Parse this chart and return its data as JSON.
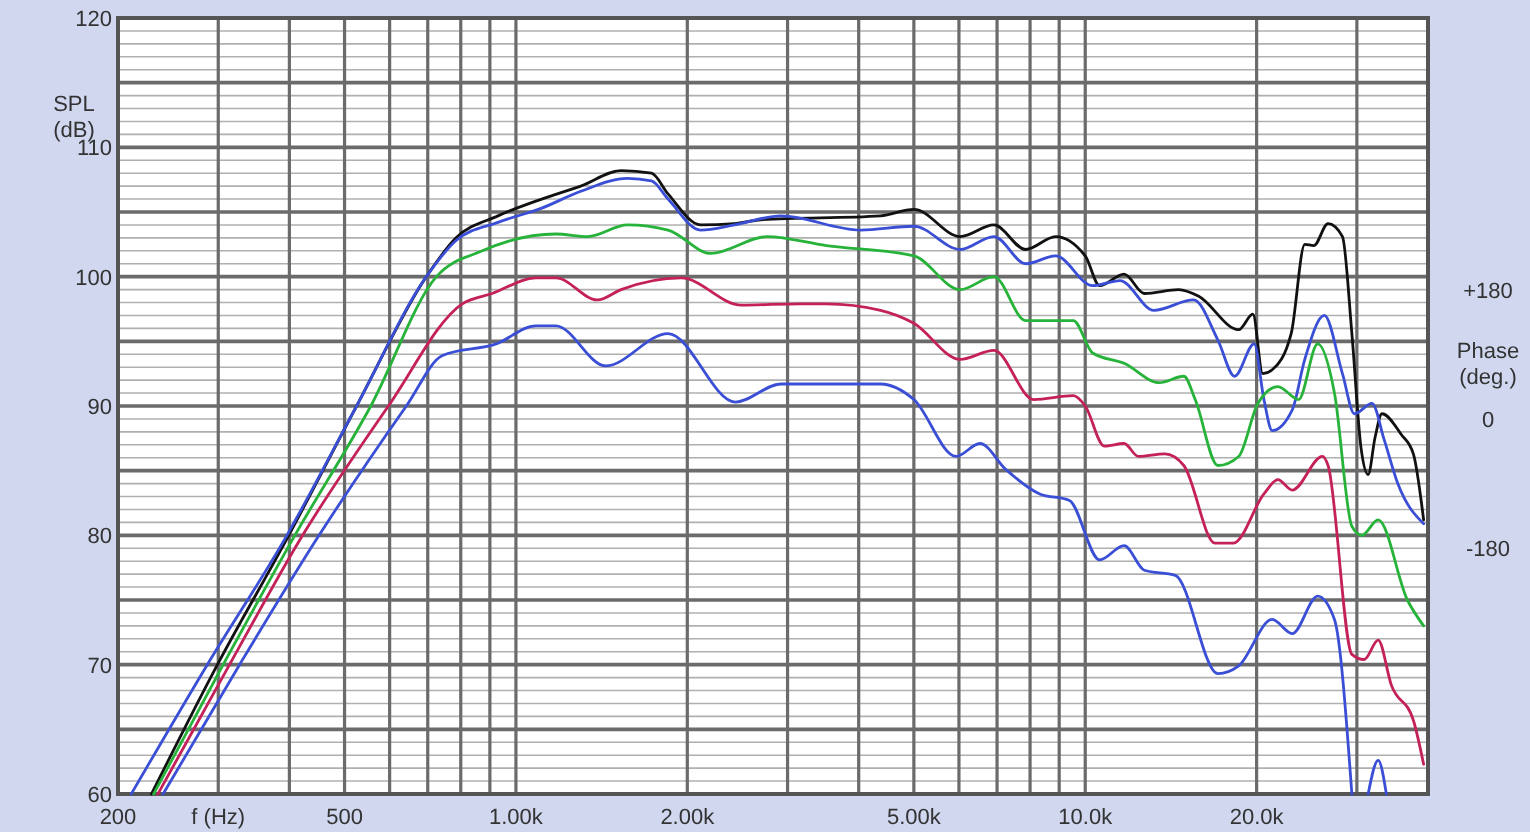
{
  "chart_data": {
    "type": "line",
    "xlabel": "f (Hz)",
    "ylabel": "SPL\n(dB)",
    "y2label": "Phase\n(deg.)",
    "log": "x",
    "grid": true,
    "line_style": "solid",
    "marker": "none",
    "xlim": [
      200,
      40000
    ],
    "ylim": [
      60,
      120
    ],
    "y2lim": [
      -522,
      558
    ],
    "xticks": [
      200,
      {
        "value": 300,
        "label": null
      },
      {
        "value": 400,
        "label": null
      },
      500,
      {
        "value": 600,
        "label": null
      },
      {
        "value": 700,
        "label": null
      },
      {
        "value": 800,
        "label": null
      },
      {
        "value": 900,
        "label": null
      },
      {
        "value": 1000,
        "label": "1.00k"
      },
      {
        "value": 2000,
        "label": "2.00k"
      },
      {
        "value": 3000,
        "label": null
      },
      {
        "value": 4000,
        "label": null
      },
      {
        "value": 5000,
        "label": "5.00k"
      },
      {
        "value": 6000,
        "label": null
      },
      {
        "value": 7000,
        "label": null
      },
      {
        "value": 8000,
        "label": null
      },
      {
        "value": 9000,
        "label": null
      },
      {
        "value": 10000,
        "label": "10.0k"
      },
      {
        "value": 20000,
        "label": "20.0k"
      },
      {
        "value": 30000,
        "label": null
      }
    ],
    "yticks": [
      60,
      {
        "value": 61,
        "label": null
      },
      {
        "value": 62,
        "label": null
      },
      {
        "value": 63,
        "label": null
      },
      {
        "value": 64,
        "label": null
      },
      {
        "value": 65,
        "label": null
      },
      {
        "value": 66,
        "label": null
      },
      {
        "value": 67,
        "label": null
      },
      {
        "value": 68,
        "label": null
      },
      {
        "value": 69,
        "label": null
      },
      70,
      {
        "value": 71,
        "label": null
      },
      {
        "value": 72,
        "label": null
      },
      {
        "value": 73,
        "label": null
      },
      {
        "value": 74,
        "label": null
      },
      {
        "value": 75,
        "label": null
      },
      {
        "value": 76,
        "label": null
      },
      {
        "value": 77,
        "label": null
      },
      {
        "value": 78,
        "label": null
      },
      {
        "value": 79,
        "label": null
      },
      80,
      {
        "value": 81,
        "label": null
      },
      {
        "value": 82,
        "label": null
      },
      {
        "value": 83,
        "label": null
      },
      {
        "value": 84,
        "label": null
      },
      {
        "value": 85,
        "label": null
      },
      {
        "value": 86,
        "label": null
      },
      {
        "value": 87,
        "label": null
      },
      {
        "value": 88,
        "label": null
      },
      {
        "value": 89,
        "label": null
      },
      90,
      {
        "value": 91,
        "label": null
      },
      {
        "value": 92,
        "label": null
      },
      {
        "value": 93,
        "label": null
      },
      {
        "value": 94,
        "label": null
      },
      {
        "value": 95,
        "label": null
      },
      {
        "value": 96,
        "label": null
      },
      {
        "value": 97,
        "label": null
      },
      {
        "value": 98,
        "label": null
      },
      {
        "value": 99,
        "label": null
      },
      100,
      {
        "value": 101,
        "label": null
      },
      {
        "value": 102,
        "label": null
      },
      {
        "value": 103,
        "label": null
      },
      {
        "value": 104,
        "label": null
      },
      {
        "value": 105,
        "label": null
      },
      {
        "value": 106,
        "label": null
      },
      {
        "value": 107,
        "label": null
      },
      {
        "value": 108,
        "label": null
      },
      {
        "value": 109,
        "label": null
      },
      110,
      {
        "value": 111,
        "label": null
      },
      {
        "value": 112,
        "label": null
      },
      {
        "value": 113,
        "label": null
      },
      {
        "value": 114,
        "label": null
      },
      {
        "value": 115,
        "label": null
      },
      {
        "value": 116,
        "label": null
      },
      {
        "value": 117,
        "label": null
      },
      {
        "value": 118,
        "label": null
      },
      {
        "value": 119,
        "label": null
      },
      120
    ],
    "y2ticks": [
      {
        "value": 180,
        "label": "+180"
      },
      0,
      -180
    ],
    "series": [
      {
        "color": "#111111",
        "x": [
          229,
          299,
          399,
          525,
          696,
          785,
          930,
          1110,
          1300,
          1530,
          1730,
          1850,
          2110,
          2420,
          2690,
          4370,
          5000,
          6030,
          6910,
          7860,
          8870,
          10000,
          10600,
          11700,
          12700,
          14600,
          15800,
          18600,
          19700,
          20500,
          21300,
          23000,
          24300,
          25200,
          26700,
          28300,
          29400,
          30500,
          31400,
          32300,
          33200,
          35900,
          37700,
          39300
        ],
        "values": [
          60,
          70,
          80,
          90,
          100,
          103,
          104.7,
          106,
          107,
          108.2,
          108,
          106.4,
          104,
          104.1,
          104.4,
          104.7,
          105.2,
          103.1,
          104,
          102.1,
          103.1,
          101.6,
          99.3,
          100.2,
          98.7,
          99,
          98.5,
          95.9,
          97.1,
          92.5,
          92.8,
          95.6,
          102.5,
          102.4,
          104.1,
          103.1,
          95.6,
          86.8,
          84.7,
          87.6,
          89.4,
          87.8,
          86.3,
          81.2
        ]
      },
      {
        "color": "#3a4fd6",
        "x": [
          211,
          287,
          396,
          525,
          696,
          785,
          930,
          1110,
          1300,
          1570,
          1730,
          1850,
          2110,
          2420,
          2920,
          4030,
          5000,
          6030,
          6910,
          7860,
          8870,
          10300,
          11500,
          13200,
          15500,
          17100,
          18300,
          19800,
          20600,
          21300,
          23100,
          24300,
          26300,
          28300,
          29700,
          31900,
          33500,
          35400,
          39300
        ],
        "values": [
          60,
          70,
          80,
          90,
          100,
          102.8,
          104.2,
          105.3,
          106.6,
          107.6,
          107.4,
          106,
          103.6,
          104,
          104.7,
          103.6,
          103.9,
          102.1,
          103.1,
          101,
          101.6,
          99.3,
          99.7,
          97.4,
          98.2,
          95.1,
          92.3,
          94.8,
          90.5,
          88.1,
          89.7,
          93.6,
          97,
          92.5,
          89.4,
          90.2,
          87.4,
          84,
          80.9
        ]
      },
      {
        "color": "#27b33a",
        "x": [
          231,
          306,
          409,
          556,
          725,
          873,
          1175,
          1336,
          1570,
          1850,
          2200,
          2760,
          3510,
          5000,
          6030,
          6910,
          7860,
          9530,
          10300,
          11700,
          13500,
          14900,
          15600,
          17100,
          18600,
          20100,
          21800,
          23700,
          25600,
          27400,
          29400,
          30600,
          32700,
          36800,
          39300
        ],
        "values": [
          60,
          70,
          80,
          90,
          100,
          102,
          103.3,
          103.1,
          104,
          103.6,
          101.8,
          103.1,
          102.4,
          101.6,
          99,
          100,
          96.6,
          96.6,
          94.1,
          93.3,
          91.8,
          92.3,
          90.5,
          85.4,
          86.1,
          90.2,
          91.5,
          90.5,
          94.8,
          91,
          80.7,
          80,
          81.2,
          75,
          73
        ]
      },
      {
        "color": "#c4205a",
        "x": [
          235,
          314,
          422,
          597,
          805,
          908,
          1084,
          1175,
          1390,
          1530,
          1950,
          2490,
          3160,
          3510,
          4370,
          5000,
          6030,
          6910,
          8120,
          9530,
          10000,
          10800,
          11700,
          12400,
          13800,
          14900,
          16900,
          18200,
          20600,
          21800,
          23100,
          26100,
          26700,
          29400,
          30900,
          32700,
          34500,
          37700,
          39300
        ],
        "values": [
          60,
          70,
          80,
          90,
          97.9,
          98.7,
          99.9,
          99.9,
          98.2,
          99,
          99.9,
          97.8,
          97.9,
          97.9,
          97.4,
          96.4,
          93.6,
          94.3,
          90.5,
          90.8,
          90,
          86.9,
          87.1,
          86.1,
          86.3,
          85.4,
          79.4,
          79.4,
          83.2,
          84.3,
          83.5,
          86.1,
          85.4,
          70.8,
          70.4,
          71.9,
          68.4,
          65.7,
          62.3
        ]
      },
      {
        "color": "#3a4fd6",
        "x": [
          240,
          327,
          451,
          642,
          743,
          923,
          1084,
          1175,
          1437,
          1850,
          2430,
          2920,
          4370,
          5000,
          5930,
          6530,
          7250,
          8320,
          9380,
          10600,
          11700,
          12700,
          14400,
          17100,
          18600,
          21300,
          23100,
          25600,
          27400,
          29400,
          30600,
          31400,
          32700,
          33800
        ],
        "values": [
          60,
          70,
          80,
          90,
          93.9,
          94.8,
          96.2,
          96.2,
          93.1,
          95.6,
          90.3,
          91.7,
          91.7,
          90.5,
          86.1,
          87.1,
          85.1,
          83.2,
          82.7,
          78.1,
          79.2,
          77.3,
          76.9,
          69.3,
          69.9,
          73.5,
          72.4,
          75.3,
          73.5,
          60,
          null,
          60,
          62.6,
          60
        ]
      }
    ]
  }
}
